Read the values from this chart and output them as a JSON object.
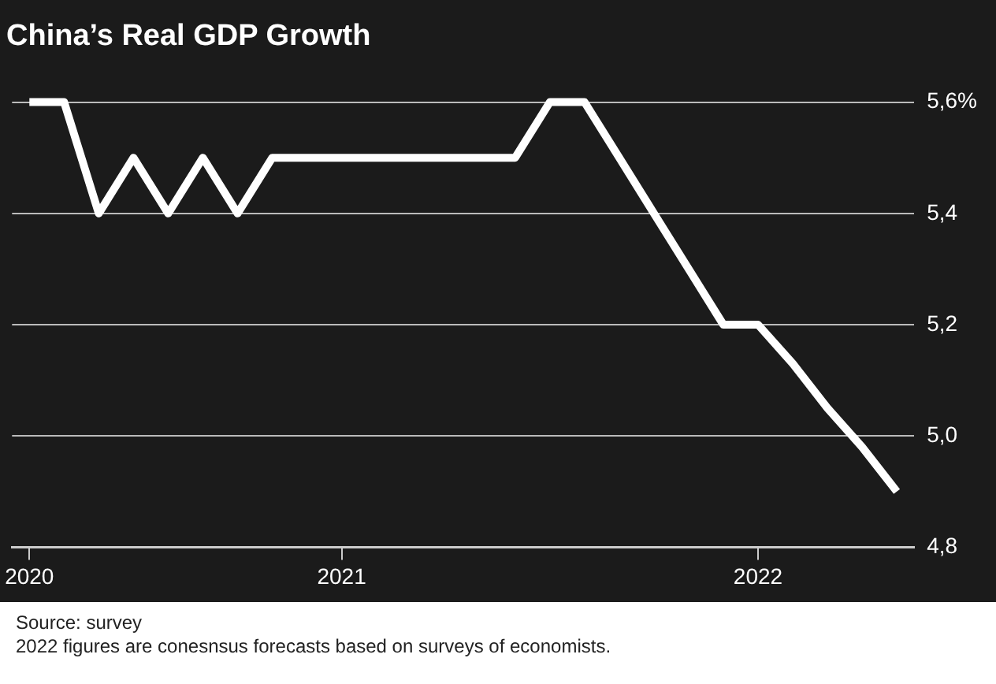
{
  "chart_data": {
    "type": "line",
    "title": "China’s Real GDP Growth",
    "categories": [
      "2020",
      null,
      null,
      null,
      null,
      null,
      null,
      null,
      null,
      "2021",
      null,
      null,
      null,
      null,
      null,
      null,
      null,
      null,
      null,
      null,
      null,
      "2022",
      null,
      null,
      null,
      null
    ],
    "series": [
      {
        "color": "#ffffff",
        "values": [
          5.6,
          5.6,
          5.4,
          5.5,
          5.4,
          5.5,
          5.4,
          5.5,
          5.5,
          5.5,
          5.5,
          5.5,
          5.5,
          5.5,
          5.5,
          5.6,
          5.6,
          5.5,
          5.4,
          5.3,
          5.2,
          5.2,
          5.13,
          5.05,
          4.98,
          4.9
        ]
      }
    ],
    "ylim": [
      4.8,
      5.6
    ],
    "yticks": [
      {
        "value": 4.8,
        "label": "4,8"
      },
      {
        "value": 5.0,
        "label": "5,0"
      },
      {
        "value": 5.2,
        "label": "5,2"
      },
      {
        "value": 5.4,
        "label": "5,4"
      },
      {
        "value": 5.6,
        "label": "5,6%"
      }
    ],
    "grid": "y",
    "legend": false,
    "marker": "none",
    "line_style": "solid",
    "annotations": [
      "Source: survey",
      "2022 figures are conesnsus forecasts based on surveys of economists."
    ]
  }
}
